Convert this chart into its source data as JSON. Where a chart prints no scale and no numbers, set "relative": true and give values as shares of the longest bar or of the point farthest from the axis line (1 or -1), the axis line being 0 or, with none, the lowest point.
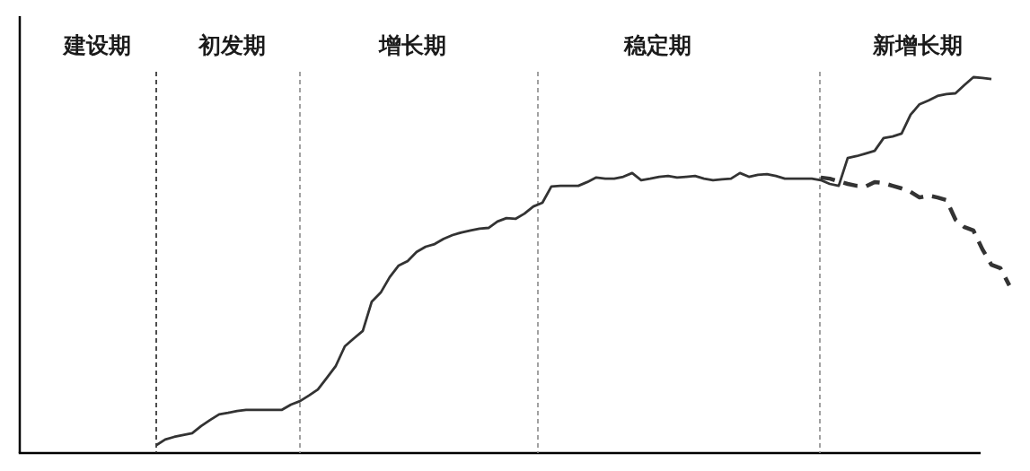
{
  "chart_data": {
    "type": "line",
    "relative": true,
    "categories": [
      null,
      null,
      null,
      null,
      null,
      null,
      null,
      null,
      null,
      null,
      null,
      null,
      null,
      null,
      null,
      null,
      null,
      null,
      null,
      null,
      null,
      null,
      null,
      null,
      null,
      null,
      null,
      null,
      null,
      null,
      null,
      null,
      null,
      null,
      null,
      null,
      null,
      null,
      null,
      null,
      null,
      null,
      null,
      null,
      null,
      null,
      null,
      null,
      null,
      null,
      null,
      null,
      null,
      null,
      null,
      null,
      null,
      null,
      null,
      null,
      null,
      null,
      null,
      null,
      null,
      null,
      null,
      null,
      null,
      null,
      null,
      null,
      null,
      null,
      null,
      null,
      null,
      null,
      null,
      null,
      null,
      null,
      null,
      null,
      null,
      null,
      null,
      null,
      null,
      null,
      null,
      null,
      null,
      null,
      null,
      null,
      null,
      null,
      null,
      null,
      null,
      null,
      null,
      null,
      null,
      null,
      null,
      null,
      null,
      null,
      null
    ],
    "series": [
      {
        "color": "#333333",
        "values": [
          null,
          null,
          null,
          null,
          null,
          null,
          null,
          null,
          null,
          null,
          null,
          null,
          null,
          null,
          null,
          0.021,
          0.036,
          0.043,
          0.048,
          0.053,
          0.072,
          0.088,
          0.103,
          0.107,
          0.112,
          0.115,
          0.115,
          0.115,
          0.115,
          0.115,
          0.129,
          0.138,
          0.153,
          0.169,
          0.2,
          0.232,
          0.284,
          0.305,
          0.325,
          0.403,
          0.427,
          0.468,
          0.499,
          0.511,
          0.535,
          0.549,
          0.556,
          0.57,
          0.58,
          0.587,
          0.592,
          0.597,
          0.599,
          0.616,
          0.625,
          0.623,
          0.637,
          0.656,
          0.666,
          0.709,
          0.711,
          0.711,
          0.711,
          0.721,
          0.733,
          0.73,
          0.73,
          0.735,
          0.745,
          0.726,
          0.73,
          0.735,
          0.737,
          0.733,
          0.735,
          0.737,
          0.73,
          0.726,
          0.728,
          0.73,
          0.745,
          0.735,
          0.74,
          0.742,
          0.737,
          0.73,
          0.73,
          0.73,
          0.73,
          0.726,
          0.716,
          0.711,
          0.785,
          0.79,
          0.797,
          0.804,
          0.838,
          0.842,
          0.85,
          0.9,
          0.928,
          0.938,
          0.95,
          0.955,
          0.957,
          0.979,
          1,
          0.998,
          0.995,
          null,
          null
        ]
      },
      {
        "color": "#333333",
        "line_style": "dashed",
        "values": [
          null,
          null,
          null,
          null,
          null,
          null,
          null,
          null,
          null,
          null,
          null,
          null,
          null,
          null,
          null,
          null,
          null,
          null,
          null,
          null,
          null,
          null,
          null,
          null,
          null,
          null,
          null,
          null,
          null,
          null,
          null,
          null,
          null,
          null,
          null,
          null,
          null,
          null,
          null,
          null,
          null,
          null,
          null,
          null,
          null,
          null,
          null,
          null,
          null,
          null,
          null,
          null,
          null,
          null,
          null,
          null,
          null,
          null,
          null,
          null,
          null,
          null,
          null,
          null,
          null,
          null,
          null,
          null,
          null,
          null,
          null,
          null,
          null,
          null,
          null,
          null,
          null,
          null,
          null,
          null,
          null,
          null,
          null,
          null,
          null,
          null,
          null,
          null,
          null,
          0.733,
          0.73,
          0.723,
          0.716,
          0.711,
          0.709,
          0.721,
          0.718,
          0.711,
          0.704,
          0.695,
          0.68,
          0.685,
          0.68,
          0.673,
          0.621,
          0.601,
          0.592,
          0.542,
          0.501,
          0.492,
          0.446
        ]
      }
    ],
    "annotations": [
      "建设期",
      "初发期",
      "增长期",
      "稳定期",
      "新增长期"
    ]
  }
}
